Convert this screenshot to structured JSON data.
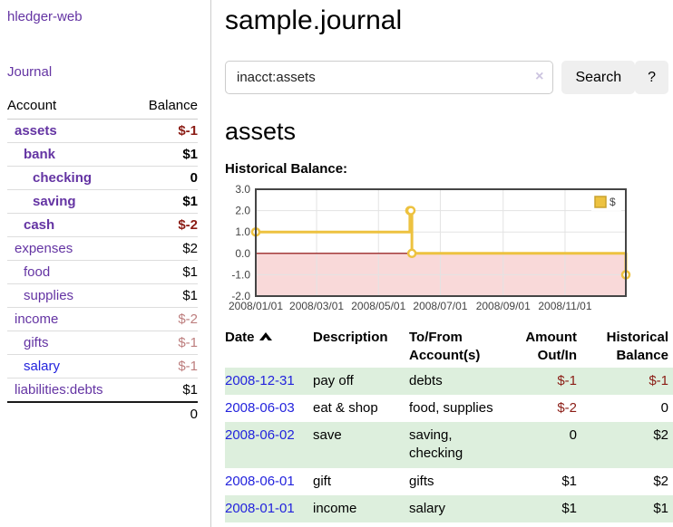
{
  "app": {
    "brand": "hledger-web",
    "nav": {
      "journal": "Journal"
    }
  },
  "sidebar": {
    "header": {
      "account": "Account",
      "balance": "Balance"
    },
    "accounts": [
      {
        "name": "assets",
        "level": 1,
        "bold": true,
        "link_style": "purple",
        "balance": "$-1",
        "balance_style": "neg"
      },
      {
        "name": "bank",
        "level": 2,
        "bold": true,
        "link_style": "purple",
        "balance": "$1",
        "balance_style": ""
      },
      {
        "name": "checking",
        "level": 3,
        "bold": true,
        "link_style": "purple",
        "balance": "0",
        "balance_style": ""
      },
      {
        "name": "saving",
        "level": 3,
        "bold": true,
        "link_style": "purple",
        "balance": "$1",
        "balance_style": ""
      },
      {
        "name": "cash",
        "level": 2,
        "bold": true,
        "link_style": "purple",
        "balance": "$-2",
        "balance_style": "neg"
      },
      {
        "name": "expenses",
        "level": 1,
        "bold": false,
        "link_style": "purple",
        "balance": "$2",
        "balance_style": ""
      },
      {
        "name": "food",
        "level": 2,
        "bold": false,
        "link_style": "purple",
        "balance": "$1",
        "balance_style": ""
      },
      {
        "name": "supplies",
        "level": 2,
        "bold": false,
        "link_style": "purple",
        "balance": "$1",
        "balance_style": ""
      },
      {
        "name": "income",
        "level": 1,
        "bold": false,
        "link_style": "purple",
        "balance": "$-2",
        "balance_style": "neg-muted"
      },
      {
        "name": "gifts",
        "level": 2,
        "bold": false,
        "link_style": "purple",
        "balance": "$-1",
        "balance_style": "neg-muted"
      },
      {
        "name": "salary",
        "level": 2,
        "bold": false,
        "link_style": "blue",
        "balance": "$-1",
        "balance_style": "neg-muted"
      },
      {
        "name": "liabilities:debts",
        "level": 1,
        "bold": false,
        "link_style": "purple",
        "balance": "$1",
        "balance_style": ""
      }
    ],
    "total": "0"
  },
  "main": {
    "title": "sample.journal",
    "search": {
      "value": "inacct:assets",
      "clear": "×",
      "button": "Search",
      "help": "?"
    },
    "account_heading": "assets",
    "chart_title": "Historical Balance:"
  },
  "chart_data": {
    "type": "line",
    "step": true,
    "title": "Historical Balance",
    "series": [
      {
        "name": "$",
        "color": "#edc240",
        "points": [
          [
            "2008-01-01",
            1
          ],
          [
            "2008-06-01",
            2
          ],
          [
            "2008-06-02",
            2
          ],
          [
            "2008-06-03",
            0
          ],
          [
            "2008-12-31",
            -1
          ]
        ]
      }
    ],
    "x_range": [
      "2008-01-01",
      "2008-12-31"
    ],
    "ylim": [
      -2,
      3
    ],
    "y_ticks": [
      3,
      2,
      1,
      0,
      -1,
      -2
    ],
    "x_ticks": [
      {
        "date": "2008-01-01",
        "label": "2008/01/01"
      },
      {
        "date": "2008-03-01",
        "label": "2008/03/01"
      },
      {
        "date": "2008-05-01",
        "label": "2008/05/01"
      },
      {
        "date": "2008-07-01",
        "label": "2008/07/01"
      },
      {
        "date": "2008-09-01",
        "label": "2008/09/01"
      },
      {
        "date": "2008-11-01",
        "label": "2008/11/01"
      }
    ],
    "grid": true,
    "negative_region_color": "#f9d9d9",
    "zero_line_color": "#8b0000",
    "legend": {
      "label": "$",
      "position": "top-right"
    }
  },
  "transactions": {
    "headers": {
      "date": "Date",
      "description": "Description",
      "accounts": "To/From Account(s)",
      "amount": "Amount Out/In",
      "balance": "Historical Balance"
    },
    "rows": [
      {
        "date": "2008-12-31",
        "description": "pay off",
        "accounts": "debts",
        "amount": "$-1",
        "amount_neg": true,
        "balance": "$-1",
        "balance_neg": true
      },
      {
        "date": "2008-06-03",
        "description": "eat & shop",
        "accounts": "food, supplies",
        "amount": "$-2",
        "amount_neg": true,
        "balance": "0",
        "balance_neg": false
      },
      {
        "date": "2008-06-02",
        "description": "save",
        "accounts": "saving,\nchecking",
        "amount": "0",
        "amount_neg": false,
        "balance": "$2",
        "balance_neg": false
      },
      {
        "date": "2008-06-01",
        "description": "gift",
        "accounts": "gifts",
        "amount": "$1",
        "amount_neg": false,
        "balance": "$2",
        "balance_neg": false
      },
      {
        "date": "2008-01-01",
        "description": "income",
        "accounts": "salary",
        "amount": "$1",
        "amount_neg": false,
        "balance": "$1",
        "balance_neg": false
      }
    ]
  }
}
